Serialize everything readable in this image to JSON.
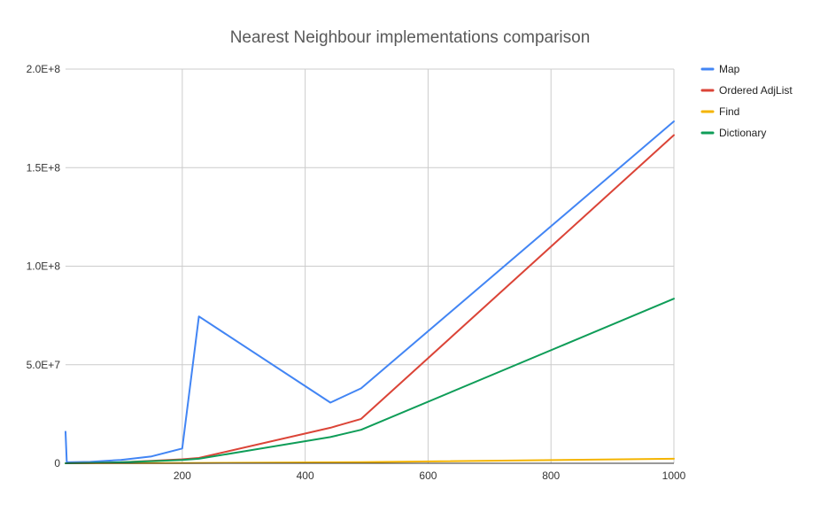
{
  "chart_data": {
    "type": "line",
    "title": "Nearest Neighbour implementations comparison",
    "xlabel": "",
    "ylabel": "",
    "xlim": [
      10,
      1000
    ],
    "ylim": [
      0,
      200000000
    ],
    "x_ticks": [
      200,
      400,
      600,
      800,
      1000
    ],
    "x_tick_labels": [
      "200",
      "400",
      "600",
      "800",
      "1000"
    ],
    "y_ticks": [
      0,
      50000000,
      100000000,
      150000000,
      200000000
    ],
    "y_tick_labels": [
      "0",
      "5.0E+7",
      "1.0E+8",
      "1.5E+8",
      "2.0E+8"
    ],
    "grid": true,
    "legend_position": "right",
    "series": [
      {
        "name": "Map",
        "color": "#4285f4",
        "points": [
          [
            10,
            16000000
          ],
          [
            12,
            500000
          ],
          [
            50,
            700000
          ],
          [
            100,
            1700000
          ],
          [
            150,
            3500000
          ],
          [
            200,
            7500000
          ],
          [
            227,
            74500000
          ],
          [
            441,
            30800000
          ],
          [
            491,
            38000000
          ],
          [
            1000,
            173500000
          ]
        ]
      },
      {
        "name": "Ordered AdjList",
        "color": "#db4437",
        "points": [
          [
            10,
            0
          ],
          [
            50,
            200000
          ],
          [
            100,
            500000
          ],
          [
            150,
            1200000
          ],
          [
            200,
            2000000
          ],
          [
            227,
            2700000
          ],
          [
            441,
            18000000
          ],
          [
            491,
            22500000
          ],
          [
            1000,
            166500000
          ]
        ]
      },
      {
        "name": "Find",
        "color": "#f4b400",
        "points": [
          [
            10,
            0
          ],
          [
            200,
            150000
          ],
          [
            491,
            600000
          ],
          [
            1000,
            2300000
          ]
        ]
      },
      {
        "name": "Dictionary",
        "color": "#0f9d58",
        "points": [
          [
            10,
            0
          ],
          [
            50,
            200000
          ],
          [
            100,
            500000
          ],
          [
            150,
            1100000
          ],
          [
            200,
            1700000
          ],
          [
            227,
            2300000
          ],
          [
            441,
            13300000
          ],
          [
            491,
            17000000
          ],
          [
            1000,
            83500000
          ]
        ]
      }
    ]
  }
}
